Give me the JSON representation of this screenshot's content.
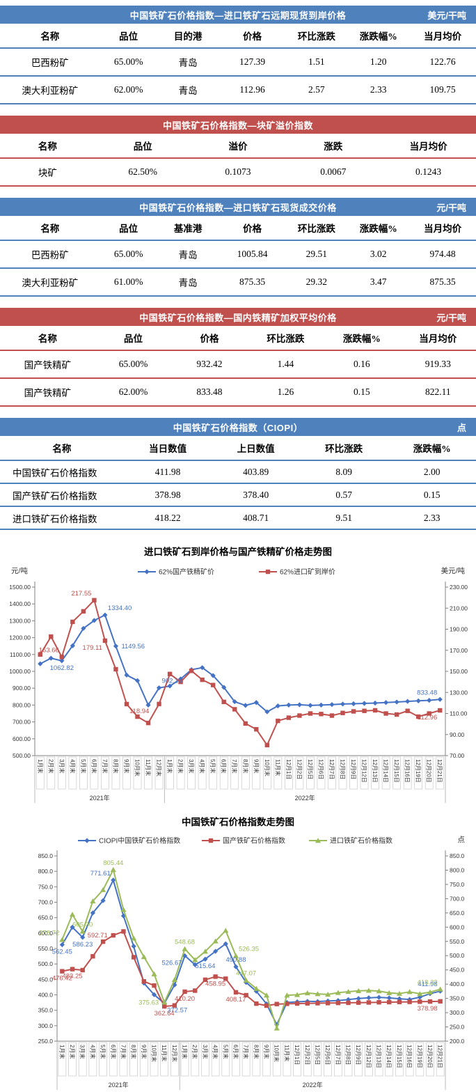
{
  "colors": {
    "blue": "#4f81bd",
    "red": "#c0504d",
    "green": "#9bbb59",
    "chart_blue": "#4472c4"
  },
  "tables": [
    {
      "theme": "blue",
      "title": "中国铁矿石价格指数—进口铁矿石远期现货到岸价格",
      "unit": "美元/干吨",
      "columns": [
        "名称",
        "品位",
        "目的港",
        "价格",
        "环比涨跌",
        "涨跌幅%",
        "当月均价"
      ],
      "rows": [
        [
          "巴西粉矿",
          "65.00%",
          "青岛",
          "127.39",
          "1.51",
          "1.20",
          "122.76"
        ],
        [
          "澳大利亚粉矿",
          "62.00%",
          "青岛",
          "112.96",
          "2.57",
          "2.33",
          "109.75"
        ]
      ]
    },
    {
      "theme": "red",
      "title": "中国铁矿石价格指数—块矿溢价指数",
      "unit": "",
      "columns": [
        "名称",
        "品位",
        "溢价",
        "涨跌",
        "当月均价"
      ],
      "rows": [
        [
          "块矿",
          "62.50%",
          "0.1073",
          "0.0067",
          "0.1243"
        ]
      ]
    },
    {
      "theme": "blue",
      "title": "中国铁矿石价格指数—进口铁矿石现货成交价格",
      "unit": "元/干吨",
      "columns": [
        "名称",
        "品位",
        "基准港",
        "价格",
        "环比涨跌",
        "涨跌幅%",
        "当月均价"
      ],
      "rows": [
        [
          "巴西粉矿",
          "65.00%",
          "青岛",
          "1005.84",
          "29.51",
          "3.02",
          "974.48"
        ],
        [
          "澳大利亚粉矿",
          "61.00%",
          "青岛",
          "875.35",
          "29.32",
          "3.47",
          "875.35"
        ]
      ]
    },
    {
      "theme": "red",
      "title": "中国铁矿石价格指数—国内铁精矿加权平均价格",
      "unit": "元/干吨",
      "columns": [
        "名称",
        "品位",
        "价格",
        "环比涨跌",
        "涨跌幅%",
        "当月均价"
      ],
      "rows": [
        [
          "国产铁精矿",
          "65.00%",
          "932.42",
          "1.44",
          "0.16",
          "919.33"
        ],
        [
          "国产铁精矿",
          "62.00%",
          "833.48",
          "1.26",
          "0.15",
          "822.11"
        ]
      ]
    },
    {
      "theme": "blue",
      "title": "中国铁矿石价格指数（CIOPI）",
      "unit": "点",
      "columns": [
        "名称",
        "当日数值",
        "上日数值",
        "环比涨跌",
        "涨跌幅%"
      ],
      "rows": [
        [
          "中国铁矿石价格指数",
          "411.98",
          "403.89",
          "8.09",
          "2.00"
        ],
        [
          "国产铁矿石价格指数",
          "378.98",
          "378.40",
          "0.57",
          "0.15"
        ],
        [
          "进口铁矿石价格指数",
          "418.22",
          "408.71",
          "9.51",
          "2.33"
        ]
      ]
    }
  ],
  "chart_data": [
    {
      "type": "line",
      "title": "进口铁矿石到岸价格与国产铁精矿价格走势图",
      "left_axis": {
        "label": "元/吨",
        "min": 500,
        "max": 1500,
        "step": 100,
        "decimals": 2
      },
      "right_axis": {
        "label": "美元/吨",
        "min": 70,
        "max": 230,
        "step": 20,
        "decimals": 2
      },
      "grid": false,
      "legend_position": "top",
      "categories": [
        "1月末",
        "2月末",
        "3月末",
        "4月末",
        "5月末",
        "6月末",
        "7月末",
        "8月末",
        "9月末",
        "10月末",
        "11月末",
        "12月末",
        "1月末",
        "2月末",
        "3月末",
        "4月末",
        "5月末",
        "6月末",
        "7月末",
        "8月末",
        "9月末",
        "10月末",
        "11月末",
        "12月1日",
        "12月2日",
        "12月5日",
        "12月6日",
        "12月7日",
        "12月8日",
        "12月9日",
        "12月12日",
        "12月13日",
        "12月14日",
        "12月15日",
        "12月16日",
        "12月19日",
        "12月20日",
        "12月21日"
      ],
      "year_groups": [
        {
          "label": "2021年",
          "count": 12
        },
        {
          "label": "2022年",
          "count": 26
        }
      ],
      "series": [
        {
          "name": "62%国产铁精矿价",
          "color": "#4472c4",
          "marker": "diamond",
          "axis": "left",
          "values": [
            1045,
            1078,
            1062.82,
            1152,
            1255,
            1302,
            1334.4,
            1149.56,
            978,
            945,
            800,
            902.16,
            913,
            955,
            1010,
            1022,
            975,
            905,
            820,
            798,
            815,
            760,
            795,
            800,
            802,
            798,
            800,
            803,
            806,
            808,
            810,
            812,
            815,
            818,
            822,
            825,
            828,
            833.48
          ]
        },
        {
          "name": "62%进口矿到岸价",
          "color": "#c0504d",
          "marker": "square",
          "axis": "right",
          "values": [
            166,
            183,
            163.66,
            197,
            207,
            217.55,
            179.11,
            152,
            118.94,
            107,
            101,
            119,
            147.5,
            140,
            150.5,
            142,
            137,
            121,
            114,
            100.5,
            95,
            80,
            103,
            106,
            108,
            110,
            109.5,
            108,
            110.5,
            112,
            112.5,
            113,
            110,
            109,
            112.5,
            107,
            110,
            112.96
          ]
        }
      ],
      "labels": [
        {
          "s": 0,
          "i": 2,
          "text": "1062.82",
          "pos": "below"
        },
        {
          "s": 0,
          "i": 6,
          "text": "1334.40",
          "pos": "above-right"
        },
        {
          "s": 0,
          "i": 7,
          "text": "1149.56",
          "pos": "right"
        },
        {
          "s": 0,
          "i": 11,
          "text": "902.16",
          "pos": "above-right"
        },
        {
          "s": 0,
          "i": 37,
          "text": "833.48",
          "pos": "above-left"
        },
        {
          "s": 1,
          "i": 2,
          "text": "163.66",
          "pos": "above-left"
        },
        {
          "s": 1,
          "i": 5,
          "text": "217.55",
          "pos": "above-left"
        },
        {
          "s": 1,
          "i": 6,
          "text": "179.11",
          "pos": "below-left"
        },
        {
          "s": 1,
          "i": 8,
          "text": "118.94",
          "pos": "below-right"
        },
        {
          "s": 1,
          "i": 37,
          "text": "112.96",
          "pos": "below-left"
        }
      ]
    },
    {
      "type": "line",
      "title": "中国铁矿石价格指数走势图",
      "left_axis": {
        "label": "",
        "min": 250,
        "max": 850,
        "step": 50,
        "decimals": 1
      },
      "right_axis": {
        "label": "点",
        "min": 200,
        "max": 850,
        "step": 50,
        "decimals": 1
      },
      "grid": false,
      "legend_position": "top",
      "categories": [
        "1月末",
        "2月末",
        "3月末",
        "4月末",
        "5月末",
        "6月末",
        "7月末",
        "8月末",
        "9月末",
        "10月末",
        "11月末",
        "12月末",
        "1月末",
        "2月末",
        "3月末",
        "4月末",
        "5月末",
        "6月末",
        "7月末",
        "8月末",
        "9月末",
        "10月末",
        "11月末",
        "12月1日",
        "12月2日",
        "12月5日",
        "12月6日",
        "12月7日",
        "12月8日",
        "12月9日",
        "12月12日",
        "12月13日",
        "12月14日",
        "12月15日",
        "12月16日",
        "12月19日",
        "12月20日",
        "12月21日"
      ],
      "year_groups": [
        {
          "label": "2021年",
          "count": 12
        },
        {
          "label": "2022年",
          "count": 26
        }
      ],
      "series": [
        {
          "name": "CIOPI中国铁矿石价格指数",
          "color": "#4472c4",
          "marker": "diamond",
          "axis": "left",
          "values": [
            562.45,
            619,
            586.23,
            665.4,
            705.2,
            771.61,
            655.7,
            557.3,
            438,
            400.5,
            372.57,
            432.2,
            526.67,
            497.5,
            515.64,
            540.9,
            565.3,
            490.88,
            440.2,
            411.5,
            370.8,
            303.45,
            375.2,
            377.5,
            379,
            378.4,
            380.1,
            381.6,
            384.9,
            388.2,
            390.5,
            391.8,
            390.1,
            387.4,
            385,
            392.3,
            403.89,
            411.98
          ]
        },
        {
          "name": "国产铁矿石价格指数",
          "color": "#c0504d",
          "marker": "square",
          "axis": "left",
          "values": [
            476.42,
            483.25,
            480.1,
            524.8,
            572.3,
            592.71,
            605.4,
            521.9,
            443.5,
            430.2,
            362.64,
            365.8,
            410.2,
            413.6,
            448.9,
            458.95,
            452.3,
            408.17,
            398.9,
            371.5,
            365,
            370.2,
            371,
            371.8,
            372.4,
            372.9,
            373.3,
            373.8,
            374.2,
            374.8,
            375.3,
            375.9,
            376.4,
            376.8,
            377.2,
            377.8,
            378.4,
            378.98
          ]
        },
        {
          "name": "进口铁矿石价格指数",
          "color": "#9bbb59",
          "marker": "triangle",
          "axis": "left",
          "values": [
            578.72,
            660.3,
            605.3,
            703.5,
            740.2,
            805.44,
            675.8,
            583.2,
            523,
            467.4,
            375.63,
            448.9,
            548.68,
            513.2,
            540.6,
            573.9,
            608.2,
            526.35,
            447.07,
            420.3,
            398.5,
            291.8,
            398.6,
            400.2,
            405.8,
            403.1,
            401.4,
            406.9,
            410.2,
            412.8,
            414,
            412.2,
            406.5,
            404.1,
            409.8,
            403.4,
            408.71,
            418.22
          ]
        }
      ],
      "labels": [
        {
          "s": 0,
          "i": 0,
          "text": "562.45",
          "pos": "below"
        },
        {
          "s": 0,
          "i": 2,
          "text": "586.23",
          "pos": "below"
        },
        {
          "s": 0,
          "i": 5,
          "text": "771.61",
          "pos": "above-left"
        },
        {
          "s": 0,
          "i": 10,
          "text": "372.57",
          "pos": "below-right"
        },
        {
          "s": 0,
          "i": 12,
          "text": "526.67",
          "pos": "below-left"
        },
        {
          "s": 0,
          "i": 14,
          "text": "515.64",
          "pos": "below"
        },
        {
          "s": 0,
          "i": 17,
          "text": "490.88",
          "pos": "above"
        },
        {
          "s": 0,
          "i": 37,
          "text": "411.98",
          "pos": "above-left"
        },
        {
          "s": 1,
          "i": 0,
          "text": "476.42",
          "pos": "below"
        },
        {
          "s": 1,
          "i": 1,
          "text": "483.25",
          "pos": "below"
        },
        {
          "s": 1,
          "i": 5,
          "text": "592.71",
          "pos": "left"
        },
        {
          "s": 1,
          "i": 10,
          "text": "362.64",
          "pos": "below"
        },
        {
          "s": 1,
          "i": 12,
          "text": "410.20",
          "pos": "below"
        },
        {
          "s": 1,
          "i": 15,
          "text": "458.95",
          "pos": "below"
        },
        {
          "s": 1,
          "i": 17,
          "text": "408.17",
          "pos": "below"
        },
        {
          "s": 1,
          "i": 37,
          "text": "378.98",
          "pos": "below-left"
        },
        {
          "s": 2,
          "i": 0,
          "text": "578.72",
          "pos": "above-left"
        },
        {
          "s": 2,
          "i": 2,
          "text": "605.30",
          "pos": "above"
        },
        {
          "s": 2,
          "i": 5,
          "text": "805.44",
          "pos": "above"
        },
        {
          "s": 2,
          "i": 10,
          "text": "375.63",
          "pos": "left"
        },
        {
          "s": 2,
          "i": 12,
          "text": "548.68",
          "pos": "above"
        },
        {
          "s": 2,
          "i": 17,
          "text": "526.35",
          "pos": "above-right"
        },
        {
          "s": 2,
          "i": 18,
          "text": "447.07",
          "pos": "above"
        },
        {
          "s": 2,
          "i": 37,
          "text": "418.22",
          "pos": "above-left"
        }
      ]
    }
  ]
}
